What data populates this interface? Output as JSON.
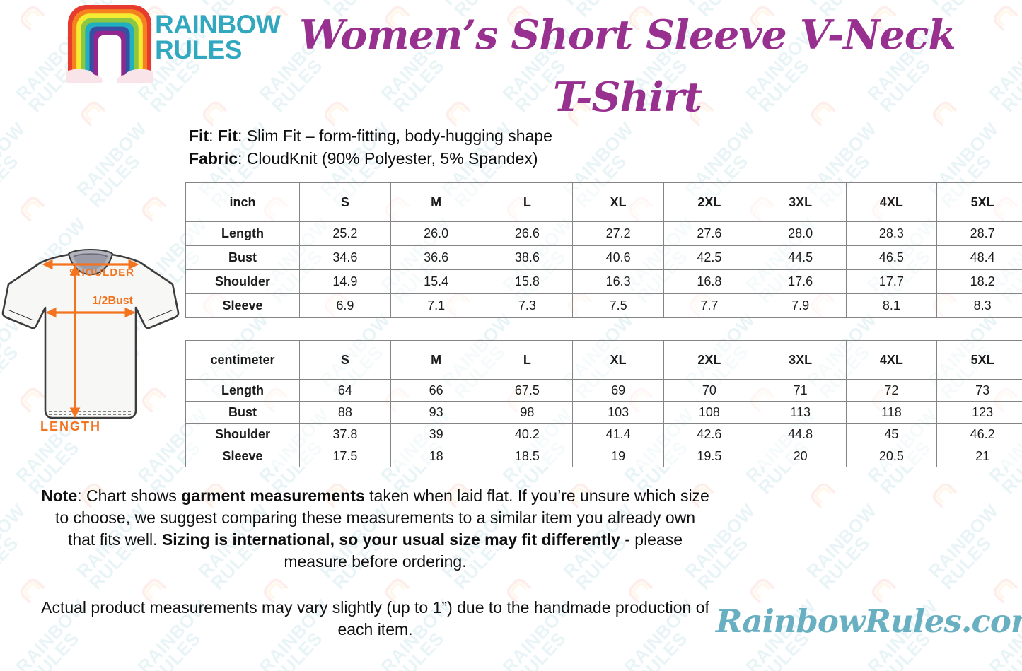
{
  "brand": {
    "line1": "RAINBOW",
    "line2": "RULES"
  },
  "title": "Women’s Short Sleeve V-Neck T-Shirt",
  "product_info": {
    "colon": ": ",
    "fit_bold": "Fit",
    "fit_bold2": "Fit",
    "fit_rest": "Slim Fit – form-fitting, body-hugging shape",
    "fabric_bold": "Fabric",
    "fabric_rest": "CloudKnit (90% Polyester, 5% Spandex)"
  },
  "diagram": {
    "shoulder_label": "SHOULDER",
    "bust_label": "1/2Bust",
    "length_label": "LENGTH"
  },
  "size_charts": [
    {
      "unit_label": "inch",
      "sizes": [
        "S",
        "M",
        "L",
        "XL",
        "2XL",
        "3XL",
        "4XL",
        "5XL"
      ],
      "rows": [
        {
          "label": "Length",
          "values": [
            "25.2",
            "26.0",
            "26.6",
            "27.2",
            "27.6",
            "28.0",
            "28.3",
            "28.7"
          ]
        },
        {
          "label": "Bust",
          "values": [
            "34.6",
            "36.6",
            "38.6",
            "40.6",
            "42.5",
            "44.5",
            "46.5",
            "48.4"
          ]
        },
        {
          "label": "Shoulder",
          "values": [
            "14.9",
            "15.4",
            "15.8",
            "16.3",
            "16.8",
            "17.6",
            "17.7",
            "18.2"
          ]
        },
        {
          "label": "Sleeve",
          "values": [
            "6.9",
            "7.1",
            "7.3",
            "7.5",
            "7.7",
            "7.9",
            "8.1",
            "8.3"
          ]
        }
      ]
    },
    {
      "unit_label": "centimeter",
      "sizes": [
        "S",
        "M",
        "L",
        "XL",
        "2XL",
        "3XL",
        "4XL",
        "5XL"
      ],
      "rows": [
        {
          "label": "Length",
          "values": [
            "64",
            "66",
            "67.5",
            "69",
            "70",
            "71",
            "72",
            "73"
          ]
        },
        {
          "label": "Bust",
          "values": [
            "88",
            "93",
            "98",
            "103",
            "108",
            "113",
            "118",
            "123"
          ]
        },
        {
          "label": "Shoulder",
          "values": [
            "37.8",
            "39",
            "40.2",
            "41.4",
            "42.6",
            "44.8",
            "45",
            "46.2"
          ]
        },
        {
          "label": "Sleeve",
          "values": [
            "17.5",
            "18",
            "18.5",
            "19",
            "19.5",
            "20",
            "20.5",
            "21"
          ]
        }
      ]
    }
  ],
  "note": {
    "label": "Note",
    "part1": ": Chart shows ",
    "bold1": "garment measurements",
    "part2": " taken when laid flat. If you’re unsure which size to choose, we suggest comparing these measurements to a similar item you already own that fits well. ",
    "bold2": "Sizing is international, so your usual size may fit differently",
    "part3": " - please measure before ordering."
  },
  "disclaimer": "Actual product measurements may vary slightly (up to 1”) due to the handmade production of each item.",
  "footer_site": "RainbowRules.com",
  "watermark": {
    "line1": "RAINBOW",
    "line2": "RULES"
  },
  "colors": {
    "title_purple": "#98308F",
    "brand_teal": "#31A8BF",
    "accent_orange": "#F4731F",
    "site_teal": "#68AFC1",
    "table_border": "#848484"
  }
}
